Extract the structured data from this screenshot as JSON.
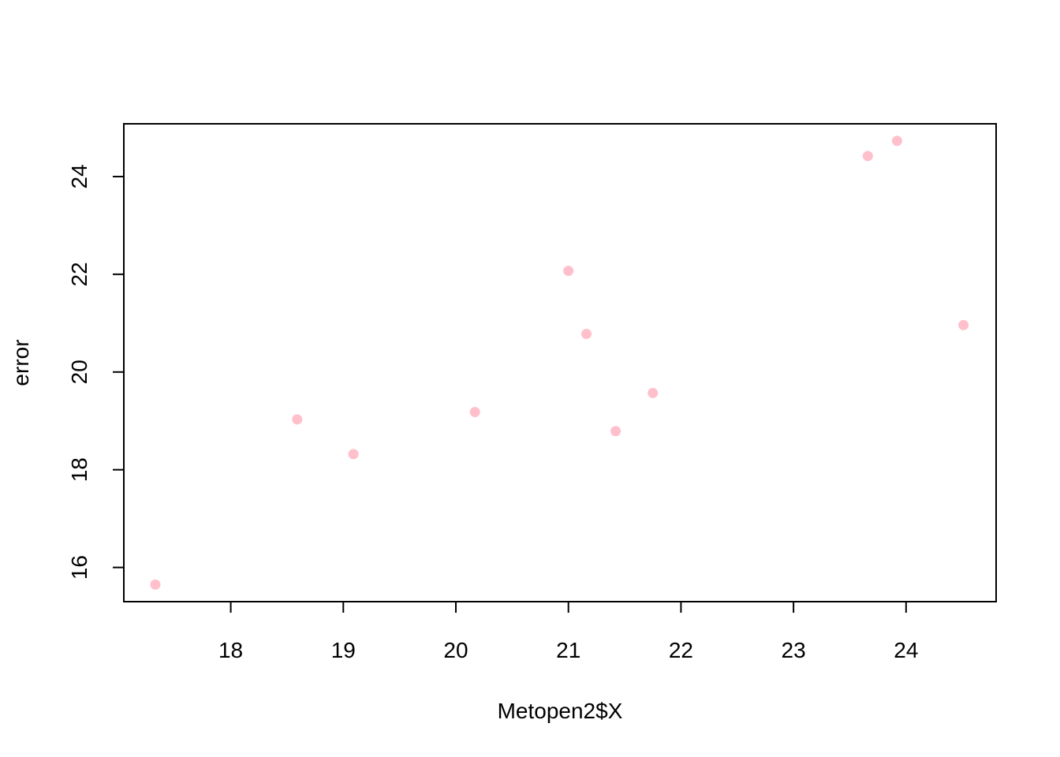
{
  "chart_data": {
    "type": "scatter",
    "title": "",
    "xlabel": "Metopen2$X",
    "ylabel": "error",
    "xlim": [
      17.05,
      24.8
    ],
    "ylim": [
      15.3,
      25.08
    ],
    "x_ticks": [
      18,
      19,
      20,
      21,
      22,
      23,
      24
    ],
    "y_ticks": [
      16,
      18,
      20,
      22,
      24
    ],
    "grid": false,
    "legend": "none",
    "point_color": "#FFC0CB",
    "axis_color": "#000000",
    "background": "#FFFFFF",
    "points": [
      {
        "x": 17.33,
        "y": 15.65
      },
      {
        "x": 18.59,
        "y": 19.03
      },
      {
        "x": 19.09,
        "y": 18.32
      },
      {
        "x": 20.17,
        "y": 19.18
      },
      {
        "x": 21.0,
        "y": 22.07
      },
      {
        "x": 21.16,
        "y": 20.78
      },
      {
        "x": 21.42,
        "y": 18.79
      },
      {
        "x": 21.75,
        "y": 19.57
      },
      {
        "x": 23.66,
        "y": 24.42
      },
      {
        "x": 23.92,
        "y": 24.73
      },
      {
        "x": 24.51,
        "y": 20.96
      }
    ]
  }
}
